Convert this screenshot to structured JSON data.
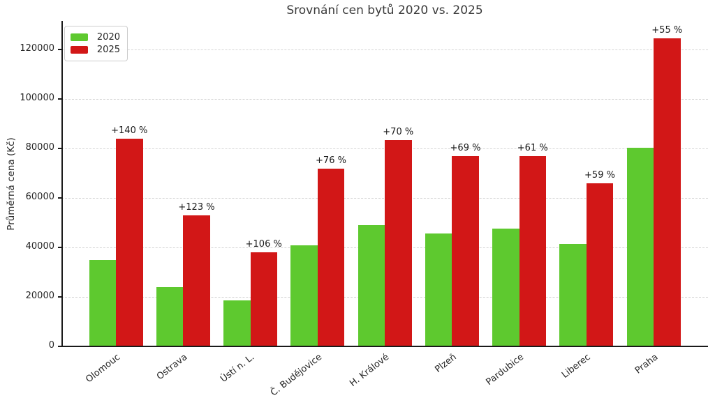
{
  "chart_data": {
    "type": "bar",
    "title": "Srovnání cen bytů 2020 vs. 2025",
    "xlabel": "",
    "ylabel": "Průměrná cena (Kč)",
    "categories": [
      "Olomouc",
      "Ostrava",
      "Ústí n. L.",
      "Č. Budějovice",
      "H. Králové",
      "Plzeň",
      "Pardubice",
      "Liberec",
      "Praha"
    ],
    "series": [
      {
        "name": "2020",
        "color": "#5ec92f",
        "values": [
          35000,
          23800,
          18500,
          40800,
          49000,
          45600,
          47700,
          41500,
          80300
        ]
      },
      {
        "name": "2025",
        "color": "#d21717",
        "values": [
          84000,
          53000,
          38100,
          71800,
          83300,
          77000,
          76900,
          66000,
          124500
        ]
      }
    ],
    "annotations": [
      "+140 %",
      "+123 %",
      "+106 %",
      "+76 %",
      "+70 %",
      "+69 %",
      "+61 %",
      "+59 %",
      "+55 %"
    ],
    "yticks": [
      0,
      20000,
      40000,
      60000,
      80000,
      100000,
      120000
    ],
    "ylim": [
      0,
      131500
    ],
    "grid": "horizontal-dashed",
    "legend_position": "upper-left",
    "legend_entries": [
      "2020",
      "2025"
    ]
  }
}
